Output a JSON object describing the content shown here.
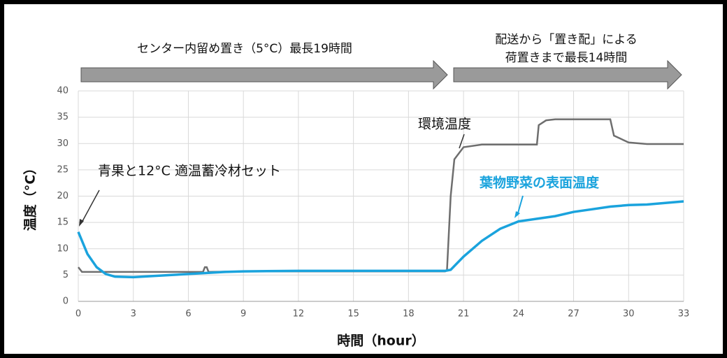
{
  "chart_data": {
    "type": "line",
    "phases": [
      {
        "lines": [
          "センター内留め置き（5°C）最長19時間"
        ]
      },
      {
        "lines": [
          "配送から「置き配」による",
          "荷置きまで最長14時間"
        ]
      }
    ],
    "annotation": "青果と12°C 適温蓄冷材セット",
    "xlabel": "時間（hour）",
    "ylabel": "温度（°C）",
    "xlim": [
      0,
      33
    ],
    "xticks": [
      0,
      3,
      6,
      9,
      12,
      15,
      18,
      21,
      24,
      27,
      30,
      33
    ],
    "ylim": [
      0,
      40
    ],
    "yticks": [
      0,
      5,
      10,
      15,
      20,
      25,
      30,
      35,
      40
    ],
    "grid": true,
    "series": [
      {
        "name": "環境温度",
        "color": "#6e6e6e",
        "x": [
          0,
          0.2,
          3,
          6.8,
          6.9,
          7.0,
          7.1,
          9,
          12,
          15,
          18,
          20,
          20.1,
          20.3,
          20.5,
          21,
          22,
          25,
          25.1,
          25.5,
          26,
          29,
          29.2,
          30,
          31,
          33
        ],
        "values": [
          6.5,
          5.6,
          5.6,
          5.6,
          6.5,
          6.5,
          5.6,
          5.7,
          5.7,
          5.7,
          5.7,
          5.7,
          6,
          20,
          27,
          29.3,
          29.8,
          29.8,
          33.5,
          34.4,
          34.6,
          34.6,
          31.5,
          30.2,
          29.9,
          29.9
        ]
      },
      {
        "name": "葉物野菜の表面温度",
        "color": "#1aa3dd",
        "x": [
          0,
          0.5,
          1,
          1.5,
          2,
          3,
          4,
          5,
          6,
          7,
          8,
          9,
          12,
          15,
          18,
          20,
          20.3,
          21,
          22,
          23,
          24,
          25,
          26,
          27,
          28,
          29,
          30,
          31,
          32,
          33
        ],
        "values": [
          13.2,
          9,
          6.5,
          5.2,
          4.7,
          4.6,
          4.8,
          5.0,
          5.2,
          5.4,
          5.6,
          5.7,
          5.8,
          5.8,
          5.8,
          5.8,
          6.0,
          8.5,
          11.5,
          13.8,
          15.2,
          15.7,
          16.2,
          17,
          17.5,
          18,
          18.3,
          18.4,
          18.7,
          19
        ]
      }
    ]
  }
}
